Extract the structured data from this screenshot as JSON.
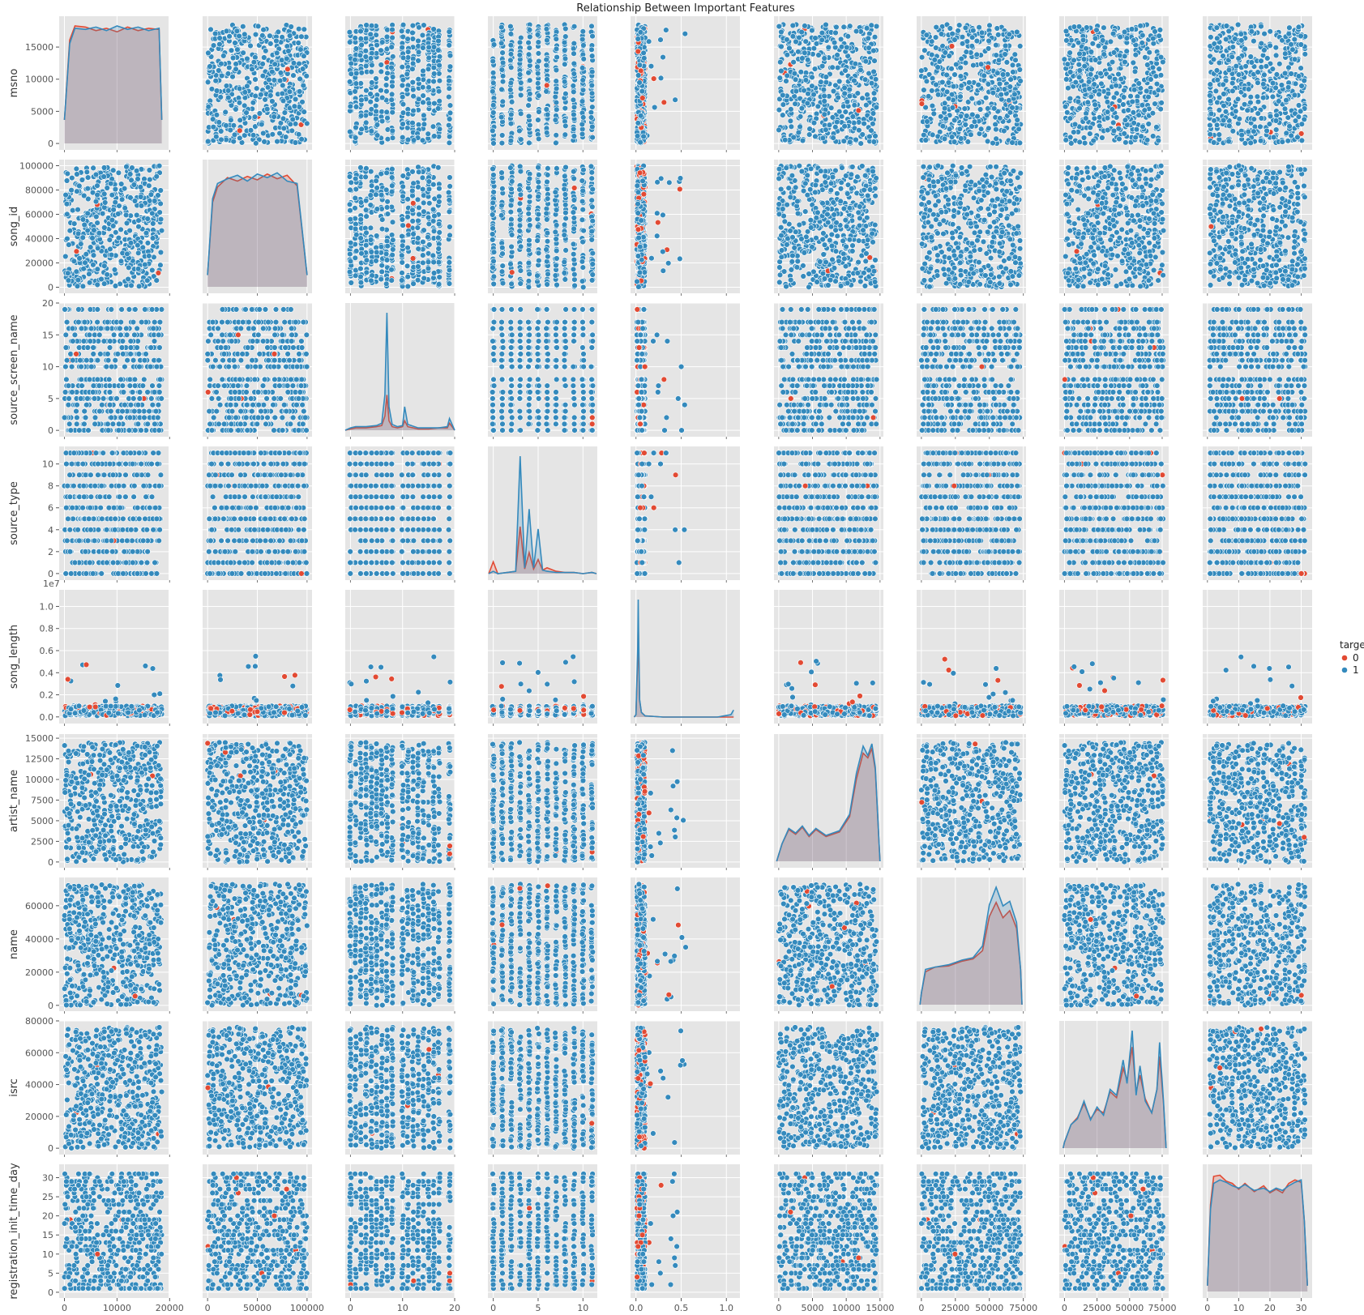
{
  "chart_data": {
    "type": "scatter",
    "subtype": "pairplot",
    "title": "Relationship Between Important Features",
    "diagonal": "kde",
    "grid": true,
    "legend": {
      "title": "target",
      "placement": "right",
      "entries": [
        "0",
        "1"
      ]
    },
    "colors": {
      "0": "#E24A33",
      "1": "#348ABD",
      "panel_bg": "#E5E5E5",
      "grid": "#FFFFFF"
    },
    "variables": [
      {
        "name": "msno",
        "range": [
          -1000,
          19800
        ],
        "ticks": [
          0,
          5000,
          10000,
          15000
        ],
        "xticks": [
          0,
          10000,
          20000
        ],
        "kind": "uniform",
        "data_range": [
          0,
          18500
        ]
      },
      {
        "name": "song_id",
        "range": [
          -5000,
          105000
        ],
        "ticks": [
          0,
          20000,
          40000,
          60000,
          80000,
          100000
        ],
        "xticks": [
          0,
          50000,
          100000
        ],
        "kind": "uniform",
        "data_range": [
          0,
          100000
        ]
      },
      {
        "name": "source_screen_name",
        "range": [
          -1,
          20
        ],
        "ticks": [
          0,
          5,
          10,
          15,
          20
        ],
        "xticks": [
          0,
          10,
          20
        ],
        "kind": "discrete",
        "levels": [
          0,
          1,
          2,
          3,
          4,
          5,
          6,
          7,
          8,
          10,
          11,
          12,
          13,
          14,
          15,
          16,
          17,
          19
        ]
      },
      {
        "name": "source_type",
        "range": [
          -0.6,
          11.6
        ],
        "ticks": [
          0,
          2,
          4,
          6,
          8,
          10
        ],
        "xticks": [
          0,
          5,
          10
        ],
        "kind": "discrete",
        "levels": [
          0,
          1,
          2,
          3,
          4,
          5,
          6,
          7,
          8,
          9,
          10,
          11
        ]
      },
      {
        "name": "song_length",
        "range": [
          -600000,
          11500000
        ],
        "ticks": [
          0,
          2000000,
          4000000,
          6000000,
          8000000,
          10000000
        ],
        "tick_labels": [
          "0.0",
          "0.2",
          "0.4",
          "0.6",
          "0.8",
          "1.0"
        ],
        "xticks": [
          0,
          5000000,
          10000000
        ],
        "xtick_labels": [
          "0.0",
          "0.5",
          "1.0"
        ],
        "scale_note": "1e7",
        "kind": "skewed",
        "data_range": [
          0,
          10800000
        ]
      },
      {
        "name": "artist_name",
        "range": [
          -700,
          15500
        ],
        "ticks": [
          0,
          2500,
          5000,
          7500,
          10000,
          12500,
          15000
        ],
        "xticks": [
          0,
          5000,
          10000,
          15000
        ],
        "kind": "uniform",
        "data_range": [
          0,
          14500
        ]
      },
      {
        "name": "name",
        "range": [
          -3500,
          77000
        ],
        "ticks": [
          0,
          20000,
          40000,
          60000
        ],
        "xticks": [
          0,
          25000,
          50000,
          75000
        ],
        "kind": "uniform",
        "data_range": [
          0,
          73000
        ]
      },
      {
        "name": "isrc",
        "range": [
          -4000,
          80000
        ],
        "ticks": [
          0,
          20000,
          40000,
          60000,
          80000
        ],
        "xticks": [
          0,
          25000,
          50000,
          75000
        ],
        "kind": "uniform",
        "data_range": [
          0,
          76000
        ]
      },
      {
        "name": "registration_init_time_day",
        "range": [
          -1.5,
          33.5
        ],
        "ticks": [
          0,
          5,
          10,
          15,
          20,
          25,
          30
        ],
        "xticks": [
          0,
          10,
          20,
          30
        ],
        "kind": "discrete",
        "levels": [
          1,
          2,
          3,
          4,
          5,
          6,
          7,
          8,
          9,
          10,
          11,
          12,
          13,
          14,
          15,
          16,
          17,
          18,
          19,
          20,
          21,
          22,
          23,
          24,
          25,
          26,
          27,
          28,
          29,
          30,
          31
        ]
      }
    ],
    "kde": {
      "msno": {
        "x": [
          0,
          1000,
          2000,
          4000,
          6000,
          8000,
          10000,
          12000,
          14000,
          16000,
          18000,
          18500
        ],
        "target_1": [
          0.2,
          0.85,
          0.98,
          0.97,
          0.99,
          0.96,
          1.0,
          0.97,
          0.99,
          0.96,
          0.98,
          0.2
        ],
        "target_0": [
          0.2,
          0.88,
          1.0,
          0.99,
          0.96,
          0.98,
          0.95,
          0.99,
          0.96,
          0.98,
          0.97,
          0.2
        ]
      },
      "song_id": {
        "x": [
          0,
          5000,
          10000,
          20000,
          30000,
          40000,
          50000,
          60000,
          70000,
          80000,
          90000,
          100000
        ],
        "target_1": [
          0.1,
          0.75,
          0.88,
          0.92,
          0.95,
          0.9,
          0.96,
          0.93,
          0.97,
          0.9,
          0.88,
          0.1
        ],
        "target_0": [
          0.1,
          0.72,
          0.85,
          0.93,
          0.9,
          0.94,
          0.91,
          0.96,
          0.92,
          0.95,
          0.86,
          0.1
        ]
      },
      "source_screen_name": {
        "x": [
          -1,
          0,
          1,
          3,
          5,
          6,
          6.6,
          7,
          7.4,
          8,
          9,
          10,
          10.4,
          11,
          13,
          15,
          17,
          18.6,
          19,
          20
        ],
        "target_1": [
          0.0,
          0.02,
          0.03,
          0.03,
          0.04,
          0.06,
          0.3,
          1.0,
          0.2,
          0.05,
          0.03,
          0.04,
          0.2,
          0.05,
          0.02,
          0.02,
          0.02,
          0.03,
          0.1,
          0.0
        ],
        "target_0": [
          0.0,
          0.01,
          0.02,
          0.02,
          0.03,
          0.04,
          0.12,
          0.3,
          0.08,
          0.03,
          0.02,
          0.03,
          0.08,
          0.03,
          0.01,
          0.01,
          0.02,
          0.02,
          0.06,
          0.0
        ]
      },
      "source_type": {
        "x": [
          -0.5,
          0,
          0.5,
          2.5,
          3,
          3.5,
          4,
          4.5,
          5,
          5.5,
          6,
          7,
          8,
          9,
          10,
          11,
          11.5
        ],
        "target_1": [
          0.0,
          0.02,
          0.0,
          0.02,
          1.0,
          0.05,
          0.55,
          0.05,
          0.38,
          0.03,
          0.02,
          0.01,
          0.01,
          0.01,
          0.0,
          0.01,
          0.0
        ],
        "target_0": [
          0.0,
          0.1,
          0.0,
          0.02,
          0.4,
          0.04,
          0.18,
          0.04,
          0.12,
          0.03,
          0.05,
          0.02,
          0.01,
          0.01,
          0.0,
          0.01,
          0.0
        ]
      },
      "song_length": {
        "x": [
          -200000,
          0,
          200000,
          250000,
          300000,
          400000,
          600000,
          1000000,
          3000000,
          6000000,
          9000000,
          10500000,
          10800000
        ],
        "target_1": [
          0.0,
          0.02,
          0.6,
          1.0,
          0.7,
          0.15,
          0.04,
          0.01,
          0.0,
          0.0,
          0.0,
          0.02,
          0.06
        ],
        "target_0": [
          0.0,
          0.02,
          0.5,
          0.85,
          0.6,
          0.14,
          0.04,
          0.01,
          0.0,
          0.0,
          0.0,
          0.0,
          0.0
        ]
      },
      "artist_name": {
        "x": [
          -300,
          500,
          1500,
          2500,
          3500,
          4500,
          5500,
          7000,
          9000,
          10500,
          11500,
          12500,
          13200,
          13800,
          14300,
          15000
        ],
        "target_1": [
          0.0,
          0.15,
          0.28,
          0.24,
          0.3,
          0.22,
          0.28,
          0.22,
          0.26,
          0.4,
          0.75,
          0.98,
          0.9,
          1.0,
          0.8,
          0.0
        ],
        "target_0": [
          0.0,
          0.15,
          0.27,
          0.23,
          0.29,
          0.21,
          0.27,
          0.21,
          0.25,
          0.38,
          0.7,
          0.92,
          0.88,
          0.96,
          0.78,
          0.0
        ]
      },
      "name": {
        "x": [
          -1000,
          0,
          3000,
          10000,
          20000,
          30000,
          38000,
          45000,
          50000,
          55000,
          60000,
          65000,
          70000,
          73000,
          74000
        ],
        "target_1": [
          0.0,
          0.1,
          0.3,
          0.32,
          0.34,
          0.38,
          0.4,
          0.5,
          0.85,
          1.0,
          0.84,
          0.88,
          0.7,
          0.3,
          0.0
        ],
        "target_0": [
          0.0,
          0.1,
          0.28,
          0.32,
          0.33,
          0.37,
          0.39,
          0.46,
          0.75,
          0.87,
          0.74,
          0.8,
          0.65,
          0.3,
          0.0
        ]
      },
      "isrc": {
        "x": [
          -1000,
          0,
          5000,
          10000,
          15000,
          20000,
          25000,
          30000,
          35000,
          40000,
          45000,
          48000,
          52000,
          55000,
          58000,
          62000,
          67000,
          71000,
          73000,
          76000,
          78000
        ],
        "target_1": [
          0.0,
          0.05,
          0.2,
          0.25,
          0.4,
          0.24,
          0.35,
          0.28,
          0.5,
          0.45,
          0.75,
          0.55,
          1.0,
          0.45,
          0.7,
          0.4,
          0.3,
          0.5,
          0.9,
          0.4,
          0.0
        ],
        "target_0": [
          0.0,
          0.05,
          0.2,
          0.26,
          0.38,
          0.25,
          0.33,
          0.3,
          0.48,
          0.43,
          0.68,
          0.58,
          0.86,
          0.48,
          0.62,
          0.42,
          0.3,
          0.5,
          0.78,
          0.38,
          0.0
        ]
      },
      "registration_init_time_day": {
        "x": [
          0,
          1,
          2,
          4,
          6,
          8,
          10,
          12,
          15,
          18,
          20,
          22,
          24,
          26,
          28,
          30,
          31,
          32
        ],
        "target_1": [
          0.05,
          0.7,
          0.92,
          0.95,
          0.93,
          0.9,
          0.88,
          0.91,
          0.86,
          0.88,
          0.85,
          0.88,
          0.86,
          0.9,
          0.93,
          0.95,
          0.6,
          0.05
        ],
        "target_0": [
          0.05,
          0.74,
          0.98,
          0.99,
          0.94,
          0.92,
          0.87,
          0.92,
          0.85,
          0.9,
          0.84,
          0.87,
          0.84,
          0.92,
          0.95,
          0.93,
          0.6,
          0.05
        ]
      }
    }
  }
}
